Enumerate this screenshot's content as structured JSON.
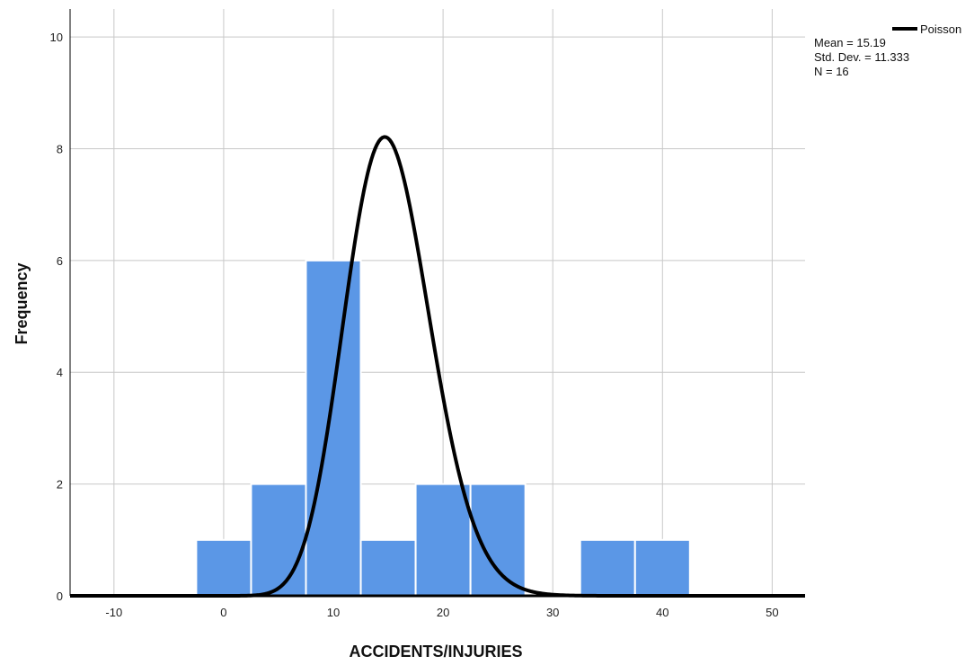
{
  "chart_data": {
    "type": "bar",
    "xlabel": "ACCIDENTS/INJURIES",
    "ylabel": "Frequency",
    "xlim": [
      -14,
      53
    ],
    "ylim": [
      0,
      10.5
    ],
    "x_ticks": [
      -10,
      0,
      10,
      20,
      30,
      40,
      50
    ],
    "y_ticks": [
      0,
      2,
      4,
      6,
      8,
      10
    ],
    "grid": true,
    "bin_width": 5,
    "bins": [
      {
        "start": -2.5,
        "end": 2.5,
        "count": 1
      },
      {
        "start": 2.5,
        "end": 7.5,
        "count": 2
      },
      {
        "start": 7.5,
        "end": 12.5,
        "count": 6
      },
      {
        "start": 12.5,
        "end": 17.5,
        "count": 1
      },
      {
        "start": 17.5,
        "end": 22.5,
        "count": 2
      },
      {
        "start": 22.5,
        "end": 27.5,
        "count": 2
      },
      {
        "start": 27.5,
        "end": 32.5,
        "count": 0
      },
      {
        "start": 32.5,
        "end": 37.5,
        "count": 1
      },
      {
        "start": 37.5,
        "end": 42.5,
        "count": 1
      }
    ],
    "curve": {
      "name": "Poisson",
      "lambda": 15.19,
      "scale": 80
    },
    "stats": {
      "mean": "Mean = 15.19",
      "std": "Std. Dev. = 11.333",
      "n": "N = 16"
    },
    "legend_position": "top-right",
    "colors": {
      "bar": "#5b97e6",
      "bar_edge": "#ffffff",
      "curve": "#000000",
      "grid": "#c8c8c8"
    }
  }
}
